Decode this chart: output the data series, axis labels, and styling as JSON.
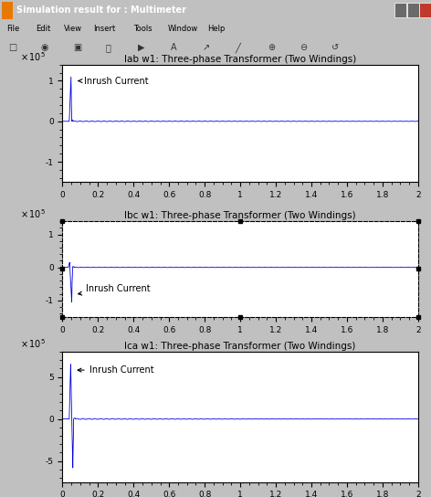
{
  "title1": "Iab w1: Three-phase Transformer (Two Windings)",
  "title2": "Ibc w1: Three-phase Transformer (Two Windings)",
  "title3": "Ica w1: Three-phase Transformer (Two Windings)",
  "xlim": [
    0,
    2
  ],
  "ylim1": [
    -1.5,
    1.4
  ],
  "ylim2": [
    -1.5,
    1.4
  ],
  "ylim3": [
    -7.5,
    8.0
  ],
  "yticks1": [
    -1,
    0,
    1
  ],
  "yticks2": [
    -1,
    0,
    1
  ],
  "yticks3": [
    -5,
    0,
    5
  ],
  "xticks": [
    0,
    0.2,
    0.4,
    0.6,
    0.8,
    1,
    1.2,
    1.4,
    1.6,
    1.8,
    2
  ],
  "xtick_labels": [
    "0",
    "0.2",
    "0.4",
    "0.6",
    "0.8",
    "1",
    "1.2",
    "1.4",
    "1.6",
    "1.8",
    "2"
  ],
  "line_color": "#0000dd",
  "bg_color": "#c0c0c0",
  "plot_bg": "#ffffff",
  "annotation_text": "Inrush Current",
  "window_title": "Simulation result for : Multimeter",
  "menu_items": [
    "File",
    "Edit",
    "View",
    "Insert",
    "Tools",
    "Window",
    "Help"
  ],
  "title_fontsize": 7.5,
  "tick_fontsize": 6.5,
  "annot_fontsize": 7,
  "exp_fontsize": 7
}
